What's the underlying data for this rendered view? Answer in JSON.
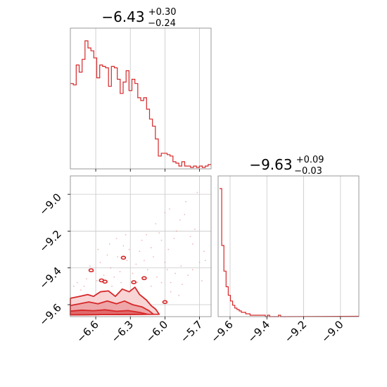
{
  "chart_data": [
    {
      "type": "histogram",
      "panel": "top-left",
      "title_main": "−6.43",
      "title_sup": "+0.30",
      "title_sub": "−0.24",
      "xlim": [
        -6.82,
        -5.6
      ],
      "x_ticks": [
        -6.6,
        -6.3,
        -6.0,
        -5.7
      ],
      "x_tick_labels": [],
      "grid": true,
      "color": "#d62728",
      "bins": [
        {
          "x": -6.82,
          "count": 60
        },
        {
          "x": -6.79,
          "count": 59
        },
        {
          "x": -6.77,
          "count": 73
        },
        {
          "x": -6.74,
          "count": 68
        },
        {
          "x": -6.72,
          "count": 77
        },
        {
          "x": -6.69,
          "count": 90
        },
        {
          "x": -6.67,
          "count": 85
        },
        {
          "x": -6.64,
          "count": 83
        },
        {
          "x": -6.62,
          "count": 78
        },
        {
          "x": -6.59,
          "count": 64
        },
        {
          "x": -6.57,
          "count": 73
        },
        {
          "x": -6.54,
          "count": 72
        },
        {
          "x": -6.52,
          "count": 71
        },
        {
          "x": -6.49,
          "count": 58
        },
        {
          "x": -6.47,
          "count": 72
        },
        {
          "x": -6.44,
          "count": 71
        },
        {
          "x": -6.42,
          "count": 63
        },
        {
          "x": -6.39,
          "count": 53
        },
        {
          "x": -6.37,
          "count": 61
        },
        {
          "x": -6.34,
          "count": 69
        },
        {
          "x": -6.32,
          "count": 55
        },
        {
          "x": -6.29,
          "count": 63
        },
        {
          "x": -6.27,
          "count": 60
        },
        {
          "x": -6.24,
          "count": 50
        },
        {
          "x": -6.22,
          "count": 48
        },
        {
          "x": -6.19,
          "count": 50
        },
        {
          "x": -6.16,
          "count": 42
        },
        {
          "x": -6.14,
          "count": 35
        },
        {
          "x": -6.11,
          "count": 30
        },
        {
          "x": -6.09,
          "count": 21
        },
        {
          "x": -6.06,
          "count": 9
        },
        {
          "x": -6.04,
          "count": 11
        },
        {
          "x": -6.01,
          "count": 11
        },
        {
          "x": -5.99,
          "count": 10
        },
        {
          "x": -5.96,
          "count": 9
        },
        {
          "x": -5.94,
          "count": 5
        },
        {
          "x": -5.91,
          "count": 4
        },
        {
          "x": -5.89,
          "count": 2
        },
        {
          "x": -5.86,
          "count": 5
        },
        {
          "x": -5.83,
          "count": 2
        },
        {
          "x": -5.81,
          "count": 2
        },
        {
          "x": -5.78,
          "count": 1
        },
        {
          "x": -5.76,
          "count": 2
        },
        {
          "x": -5.73,
          "count": 1
        },
        {
          "x": -5.7,
          "count": 2
        },
        {
          "x": -5.68,
          "count": 1
        },
        {
          "x": -5.65,
          "count": 2
        },
        {
          "x": -5.63,
          "count": 3
        }
      ]
    },
    {
      "type": "scatter",
      "panel": "bottom-left",
      "xlim": [
        -6.82,
        -5.6
      ],
      "ylim": [
        -9.665,
        -8.9
      ],
      "x_ticks": [
        -6.6,
        -6.3,
        -6.0,
        -5.7
      ],
      "x_tick_labels": [
        "−6.6",
        "−6.3",
        "−6.0",
        "−5.7"
      ],
      "y_ticks": [
        -9.0,
        -9.2,
        -9.4,
        -9.6
      ],
      "y_tick_labels": [
        "−9.0",
        "−9.2",
        "−9.4",
        "−9.6"
      ],
      "grid": true,
      "color": "#d62728",
      "density_contours": [
        {
          "level": "outer",
          "points": [
            [
              -6.82,
              -9.655
            ],
            [
              -6.82,
              -9.565
            ],
            [
              -6.74,
              -9.555
            ],
            [
              -6.67,
              -9.545
            ],
            [
              -6.62,
              -9.555
            ],
            [
              -6.56,
              -9.53
            ],
            [
              -6.49,
              -9.525
            ],
            [
              -6.43,
              -9.555
            ],
            [
              -6.37,
              -9.515
            ],
            [
              -6.31,
              -9.53
            ],
            [
              -6.26,
              -9.505
            ],
            [
              -6.22,
              -9.545
            ],
            [
              -6.16,
              -9.575
            ],
            [
              -6.12,
              -9.605
            ],
            [
              -6.08,
              -9.625
            ],
            [
              -6.05,
              -9.652
            ]
          ]
        },
        {
          "level": "middle",
          "points": [
            [
              -6.82,
              -9.655
            ],
            [
              -6.82,
              -9.605
            ],
            [
              -6.74,
              -9.595
            ],
            [
              -6.66,
              -9.585
            ],
            [
              -6.58,
              -9.595
            ],
            [
              -6.5,
              -9.58
            ],
            [
              -6.42,
              -9.595
            ],
            [
              -6.35,
              -9.58
            ],
            [
              -6.28,
              -9.6
            ],
            [
              -6.2,
              -9.612
            ],
            [
              -6.14,
              -9.632
            ],
            [
              -6.1,
              -9.652
            ]
          ]
        },
        {
          "level": "inner",
          "points": [
            [
              -6.82,
              -9.655
            ],
            [
              -6.82,
              -9.635
            ],
            [
              -6.72,
              -9.63
            ],
            [
              -6.62,
              -9.633
            ],
            [
              -6.52,
              -9.628
            ],
            [
              -6.42,
              -9.636
            ],
            [
              -6.32,
              -9.632
            ],
            [
              -6.22,
              -9.642
            ],
            [
              -6.15,
              -9.652
            ]
          ]
        }
      ],
      "islands": [
        {
          "x": -6.64,
          "y": -9.413
        },
        {
          "x": -6.55,
          "y": -9.468
        },
        {
          "x": -6.52,
          "y": -9.475
        },
        {
          "x": -6.36,
          "y": -9.345
        },
        {
          "x": -6.18,
          "y": -9.456
        },
        {
          "x": -6.27,
          "y": -9.478
        },
        {
          "x": -6.0,
          "y": -9.586
        }
      ],
      "scatter_points": [
        [
          -5.72,
          -8.99
        ],
        [
          -5.74,
          -9.19
        ],
        [
          -5.83,
          -9.11
        ],
        [
          -5.87,
          -9.14
        ],
        [
          -5.92,
          -9.24
        ],
        [
          -5.78,
          -9.23
        ],
        [
          -5.66,
          -9.31
        ],
        [
          -5.86,
          -9.39
        ],
        [
          -5.91,
          -9.43
        ],
        [
          -5.95,
          -9.48
        ],
        [
          -5.97,
          -9.3
        ],
        [
          -6.0,
          -9.37
        ],
        [
          -6.03,
          -9.25
        ],
        [
          -6.07,
          -9.45
        ],
        [
          -6.1,
          -9.34
        ],
        [
          -6.12,
          -9.29
        ],
        [
          -6.15,
          -9.41
        ],
        [
          -6.18,
          -9.36
        ],
        [
          -6.2,
          -9.25
        ],
        [
          -6.22,
          -9.31
        ],
        [
          -6.25,
          -9.38
        ],
        [
          -6.28,
          -9.43
        ],
        [
          -6.31,
          -9.3
        ],
        [
          -6.33,
          -9.36
        ],
        [
          -6.36,
          -9.28
        ],
        [
          -6.39,
          -9.42
        ],
        [
          -6.41,
          -9.34
        ],
        [
          -6.44,
          -9.45
        ],
        [
          -6.47,
          -9.4
        ],
        [
          -6.5,
          -9.33
        ],
        [
          -6.53,
          -9.44
        ],
        [
          -6.56,
          -9.37
        ],
        [
          -6.59,
          -9.47
        ],
        [
          -6.62,
          -9.42
        ],
        [
          -6.65,
          -9.39
        ],
        [
          -6.68,
          -9.46
        ],
        [
          -6.7,
          -9.5
        ],
        [
          -6.73,
          -9.52
        ],
        [
          -6.76,
          -9.48
        ],
        [
          -6.79,
          -9.5
        ],
        [
          -6.03,
          -9.48
        ],
        [
          -5.95,
          -9.53
        ],
        [
          -5.88,
          -9.55
        ],
        [
          -5.8,
          -9.44
        ],
        [
          -5.76,
          -9.41
        ],
        [
          -5.7,
          -9.37
        ],
        [
          -5.65,
          -9.36
        ],
        [
          -5.82,
          -9.04
        ],
        [
          -6.05,
          -9.21
        ],
        [
          -6.16,
          -9.22
        ],
        [
          -6.0,
          -9.1
        ],
        [
          -5.9,
          -9.2
        ],
        [
          -6.42,
          -9.24
        ],
        [
          -6.48,
          -9.27
        ],
        [
          -6.58,
          -9.3
        ],
        [
          -6.12,
          -9.5
        ],
        [
          -6.24,
          -9.48
        ],
        [
          -6.38,
          -9.48
        ],
        [
          -6.46,
          -9.5
        ],
        [
          -5.98,
          -9.41
        ],
        [
          -5.68,
          -9.47
        ],
        [
          -5.85,
          -9.49
        ],
        [
          -6.34,
          -9.22
        ],
        [
          -6.08,
          -9.16
        ],
        [
          -5.96,
          -9.08
        ],
        [
          -5.76,
          -9.27
        ]
      ]
    },
    {
      "type": "histogram",
      "panel": "bottom-right",
      "title_main": "−9.63",
      "title_sup": "+0.09",
      "title_sub": "−0.03",
      "xlim": [
        -9.665,
        -8.9
      ],
      "x_ticks": [
        -9.6,
        -9.4,
        -9.2,
        -9.0
      ],
      "x_tick_labels": [
        "−9.6",
        "−9.4",
        "−9.2",
        "−9.0"
      ],
      "grid": true,
      "color": "#d62728",
      "bins": [
        {
          "x": -9.653,
          "count": 90
        },
        {
          "x": -9.638,
          "count": 50
        },
        {
          "x": -9.623,
          "count": 32
        },
        {
          "x": -9.608,
          "count": 21
        },
        {
          "x": -9.593,
          "count": 15
        },
        {
          "x": -9.578,
          "count": 11
        },
        {
          "x": -9.563,
          "count": 8
        },
        {
          "x": -9.548,
          "count": 6
        },
        {
          "x": -9.533,
          "count": 5
        },
        {
          "x": -9.518,
          "count": 4
        },
        {
          "x": -9.503,
          "count": 3
        },
        {
          "x": -9.488,
          "count": 3
        },
        {
          "x": -9.473,
          "count": 2
        },
        {
          "x": -9.458,
          "count": 2
        },
        {
          "x": -9.443,
          "count": 1
        },
        {
          "x": -9.428,
          "count": 1
        },
        {
          "x": -9.413,
          "count": 1
        },
        {
          "x": -9.398,
          "count": 1
        },
        {
          "x": -9.383,
          "count": 1
        },
        {
          "x": -9.368,
          "count": 1
        },
        {
          "x": -9.353,
          "count": 1
        },
        {
          "x": -9.338,
          "count": 0
        },
        {
          "x": -9.323,
          "count": 1
        },
        {
          "x": -9.308,
          "count": 0
        },
        {
          "x": -9.293,
          "count": 0
        },
        {
          "x": -9.278,
          "count": 0
        },
        {
          "x": -9.263,
          "count": 0
        },
        {
          "x": -9.248,
          "count": 1
        },
        {
          "x": -9.233,
          "count": 0
        },
        {
          "x": -9.218,
          "count": 0
        }
      ]
    }
  ]
}
